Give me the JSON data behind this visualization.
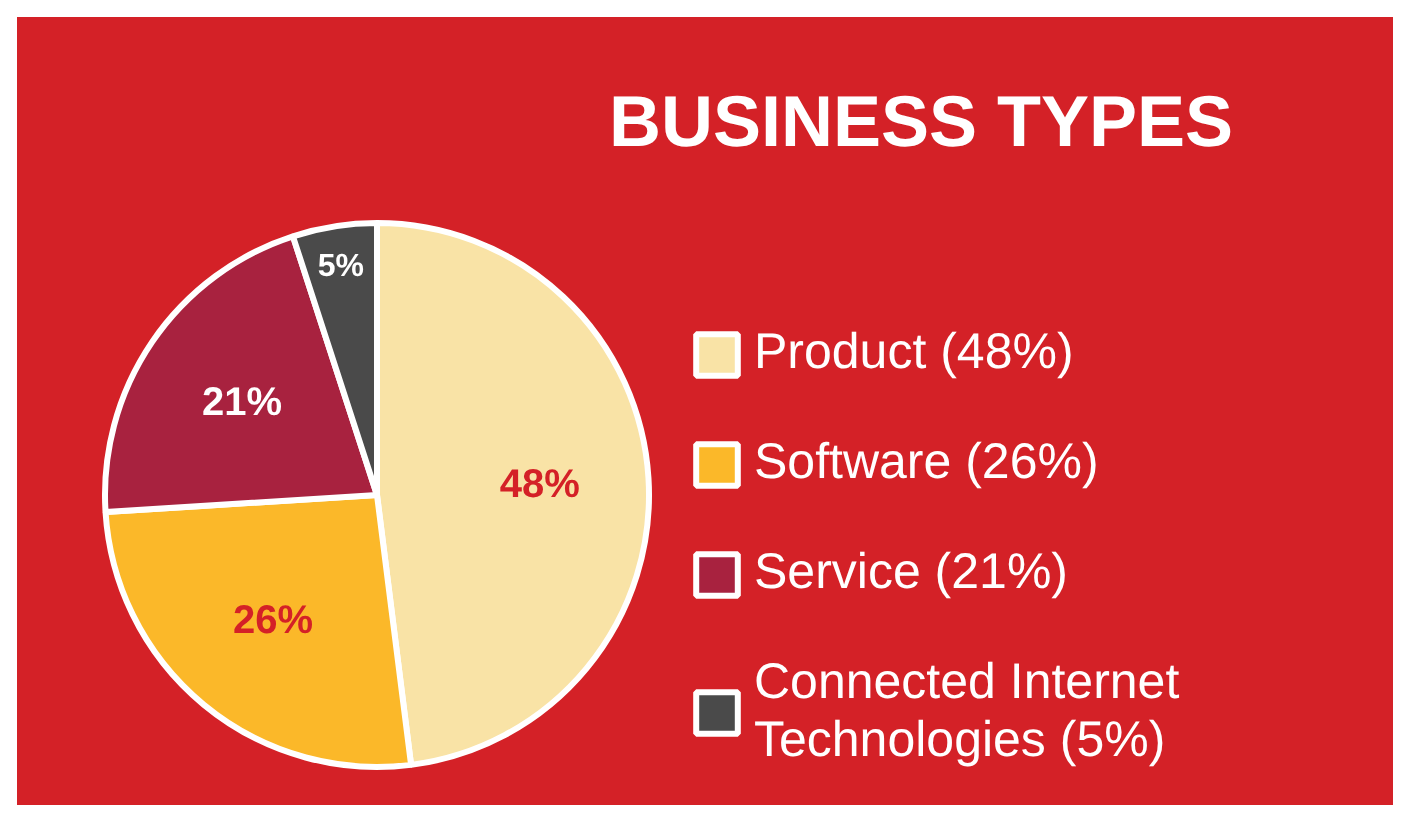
{
  "chart_data": {
    "type": "pie",
    "title": "BUSINESS TYPES",
    "categories": [
      "Product (48%)",
      "Software (26%)",
      "Service (21%)",
      "Connected Internet Technologies (5%)"
    ],
    "values": [
      48,
      26,
      21,
      5
    ],
    "colors": [
      "#f9e3a6",
      "#fbb829",
      "#a8223f",
      "#4a4a4a"
    ],
    "value_labels": [
      "48%",
      "26%",
      "21%",
      "5%"
    ],
    "legend": "right"
  }
}
